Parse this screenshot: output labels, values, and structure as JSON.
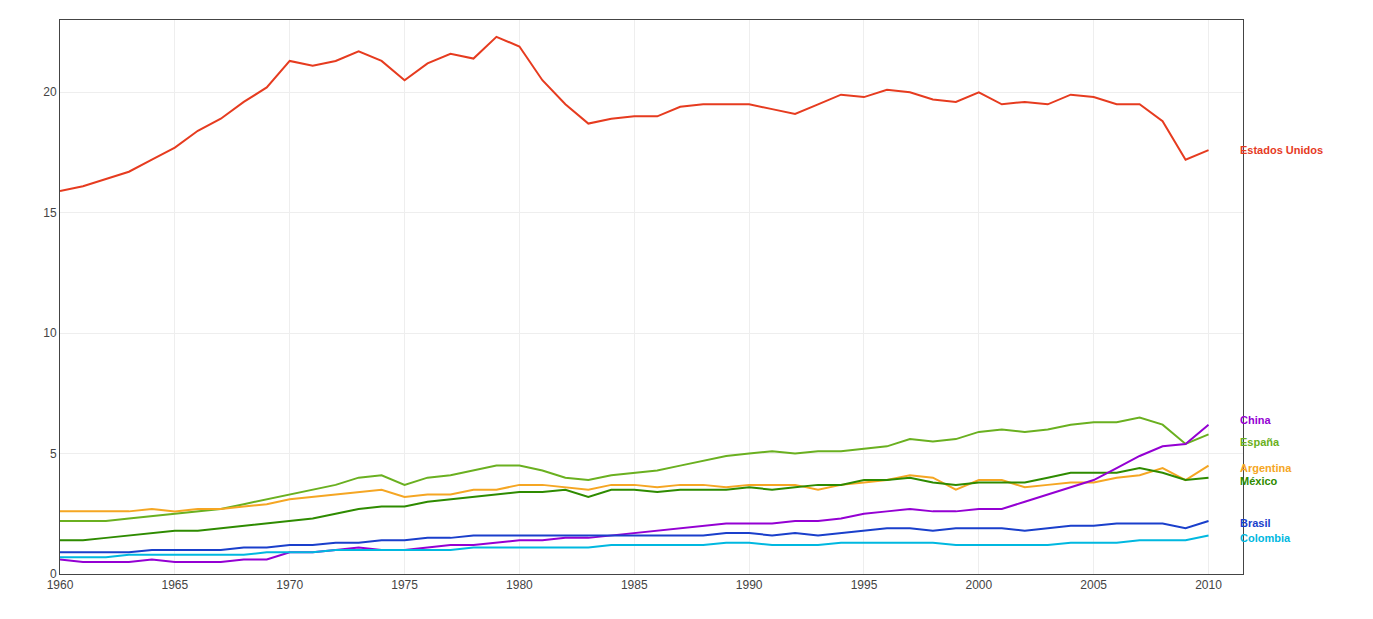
{
  "chart_data": {
    "type": "line",
    "x": [
      1960,
      1961,
      1962,
      1963,
      1964,
      1965,
      1966,
      1967,
      1968,
      1969,
      1970,
      1971,
      1972,
      1973,
      1974,
      1975,
      1976,
      1977,
      1978,
      1979,
      1980,
      1981,
      1982,
      1983,
      1984,
      1985,
      1986,
      1987,
      1988,
      1989,
      1990,
      1991,
      1992,
      1993,
      1994,
      1995,
      1996,
      1997,
      1998,
      1999,
      2000,
      2001,
      2002,
      2003,
      2004,
      2005,
      2006,
      2007,
      2008,
      2009,
      2010
    ],
    "series": [
      {
        "name": "Estados Unidos",
        "color": "#e63b1f",
        "values": [
          15.9,
          16.1,
          16.4,
          16.7,
          17.2,
          17.7,
          18.4,
          18.9,
          19.6,
          20.2,
          21.3,
          21.1,
          21.3,
          21.7,
          21.3,
          20.5,
          21.2,
          21.6,
          21.4,
          22.3,
          21.9,
          20.5,
          19.5,
          18.7,
          18.9,
          19.0,
          19.0,
          19.4,
          19.5,
          19.5,
          19.5,
          19.3,
          19.1,
          19.5,
          19.9,
          19.8,
          20.1,
          20.0,
          19.7,
          19.6,
          20.0,
          19.5,
          19.6,
          19.5,
          19.9,
          19.8,
          19.5,
          19.5,
          18.8,
          17.2,
          17.6
        ]
      },
      {
        "name": "España",
        "color": "#6ab020",
        "values": [
          2.2,
          2.2,
          2.2,
          2.3,
          2.4,
          2.5,
          2.6,
          2.7,
          2.9,
          3.1,
          3.3,
          3.5,
          3.7,
          4.0,
          4.1,
          3.7,
          4.0,
          4.1,
          4.3,
          4.5,
          4.5,
          4.3,
          4.0,
          3.9,
          4.1,
          4.2,
          4.3,
          4.5,
          4.7,
          4.9,
          5.0,
          5.1,
          5.0,
          5.1,
          5.1,
          5.2,
          5.3,
          5.6,
          5.5,
          5.6,
          5.9,
          6.0,
          5.9,
          6.0,
          6.2,
          6.3,
          6.3,
          6.5,
          6.2,
          5.4,
          5.8
        ]
      },
      {
        "name": "Argentina",
        "color": "#f5a623",
        "values": [
          2.6,
          2.6,
          2.6,
          2.6,
          2.7,
          2.6,
          2.7,
          2.7,
          2.8,
          2.9,
          3.1,
          3.2,
          3.3,
          3.4,
          3.5,
          3.2,
          3.3,
          3.3,
          3.5,
          3.5,
          3.7,
          3.7,
          3.6,
          3.5,
          3.7,
          3.7,
          3.6,
          3.7,
          3.7,
          3.6,
          3.7,
          3.7,
          3.7,
          3.5,
          3.7,
          3.8,
          3.9,
          4.1,
          4.0,
          3.5,
          3.9,
          3.9,
          3.6,
          3.7,
          3.8,
          3.8,
          4.0,
          4.1,
          4.4,
          3.9,
          4.5
        ]
      },
      {
        "name": "México",
        "color": "#2e8b00",
        "values": [
          1.4,
          1.4,
          1.5,
          1.6,
          1.7,
          1.8,
          1.8,
          1.9,
          2.0,
          2.1,
          2.2,
          2.3,
          2.5,
          2.7,
          2.8,
          2.8,
          3.0,
          3.1,
          3.2,
          3.3,
          3.4,
          3.4,
          3.5,
          3.2,
          3.5,
          3.5,
          3.4,
          3.5,
          3.5,
          3.5,
          3.6,
          3.5,
          3.6,
          3.7,
          3.7,
          3.9,
          3.9,
          4.0,
          3.8,
          3.7,
          3.8,
          3.8,
          3.8,
          4.0,
          4.2,
          4.2,
          4.2,
          4.4,
          4.2,
          3.9,
          4.0
        ]
      },
      {
        "name": "China",
        "color": "#9400d3",
        "values": [
          0.6,
          0.5,
          0.5,
          0.5,
          0.6,
          0.5,
          0.5,
          0.5,
          0.6,
          0.6,
          0.9,
          0.9,
          1.0,
          1.1,
          1.0,
          1.0,
          1.1,
          1.2,
          1.2,
          1.3,
          1.4,
          1.4,
          1.5,
          1.5,
          1.6,
          1.7,
          1.8,
          1.9,
          2.0,
          2.1,
          2.1,
          2.1,
          2.2,
          2.2,
          2.3,
          2.5,
          2.6,
          2.7,
          2.6,
          2.6,
          2.7,
          2.7,
          3.0,
          3.3,
          3.6,
          3.9,
          4.4,
          4.9,
          5.3,
          5.4,
          6.2
        ]
      },
      {
        "name": "Brasil",
        "color": "#1a3fcb",
        "values": [
          0.9,
          0.9,
          0.9,
          0.9,
          1.0,
          1.0,
          1.0,
          1.0,
          1.1,
          1.1,
          1.2,
          1.2,
          1.3,
          1.3,
          1.4,
          1.4,
          1.5,
          1.5,
          1.6,
          1.6,
          1.6,
          1.6,
          1.6,
          1.6,
          1.6,
          1.6,
          1.6,
          1.6,
          1.6,
          1.7,
          1.7,
          1.6,
          1.7,
          1.6,
          1.7,
          1.8,
          1.9,
          1.9,
          1.8,
          1.9,
          1.9,
          1.9,
          1.8,
          1.9,
          2.0,
          2.0,
          2.1,
          2.1,
          2.1,
          1.9,
          2.2
        ]
      },
      {
        "name": "Colombia",
        "color": "#00b8e0",
        "values": [
          0.7,
          0.7,
          0.7,
          0.8,
          0.8,
          0.8,
          0.8,
          0.8,
          0.8,
          0.9,
          0.9,
          0.9,
          1.0,
          1.0,
          1.0,
          1.0,
          1.0,
          1.0,
          1.1,
          1.1,
          1.1,
          1.1,
          1.1,
          1.1,
          1.2,
          1.2,
          1.2,
          1.2,
          1.2,
          1.3,
          1.3,
          1.2,
          1.2,
          1.2,
          1.3,
          1.3,
          1.3,
          1.3,
          1.3,
          1.2,
          1.2,
          1.2,
          1.2,
          1.2,
          1.3,
          1.3,
          1.3,
          1.4,
          1.4,
          1.4,
          1.6
        ]
      }
    ],
    "annotations": [
      {
        "text": "Estados Unidos",
        "x": 2011.3,
        "y": 17.6,
        "color": "#e63b1f"
      },
      {
        "text": "China",
        "x": 2011.3,
        "y": 6.4,
        "color": "#9400d3"
      },
      {
        "text": "España",
        "x": 2011.3,
        "y": 5.5,
        "color": "#6ab020"
      },
      {
        "text": "Argentina",
        "x": 2011.3,
        "y": 4.4,
        "color": "#f5a623"
      },
      {
        "text": "México",
        "x": 2011.3,
        "y": 3.85,
        "color": "#2e8b00"
      },
      {
        "text": "Brasil",
        "x": 2011.3,
        "y": 2.1,
        "color": "#1a3fcb"
      },
      {
        "text": "Colombia",
        "x": 2011.3,
        "y": 1.5,
        "color": "#00b8e0"
      }
    ],
    "xlim": [
      1960,
      2011.5
    ],
    "xticks": [
      1960,
      1965,
      1970,
      1975,
      1980,
      1985,
      1990,
      1995,
      2000,
      2005,
      2010
    ],
    "ylim": [
      0,
      23
    ],
    "yticks": [
      0,
      5,
      10,
      15,
      20
    ],
    "grid": true
  }
}
